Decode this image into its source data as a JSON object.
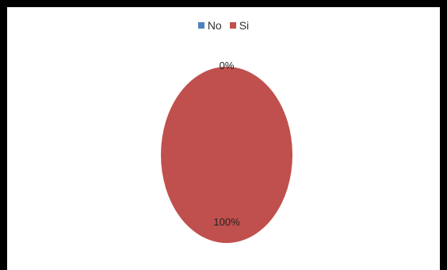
{
  "chart_data": {
    "type": "pie",
    "categories": [
      "No",
      "Si"
    ],
    "values": [
      0,
      100
    ],
    "data_labels": [
      "0%",
      "100%"
    ],
    "colors": [
      "#4f81bd",
      "#c0504d"
    ],
    "legend_position": "top"
  }
}
